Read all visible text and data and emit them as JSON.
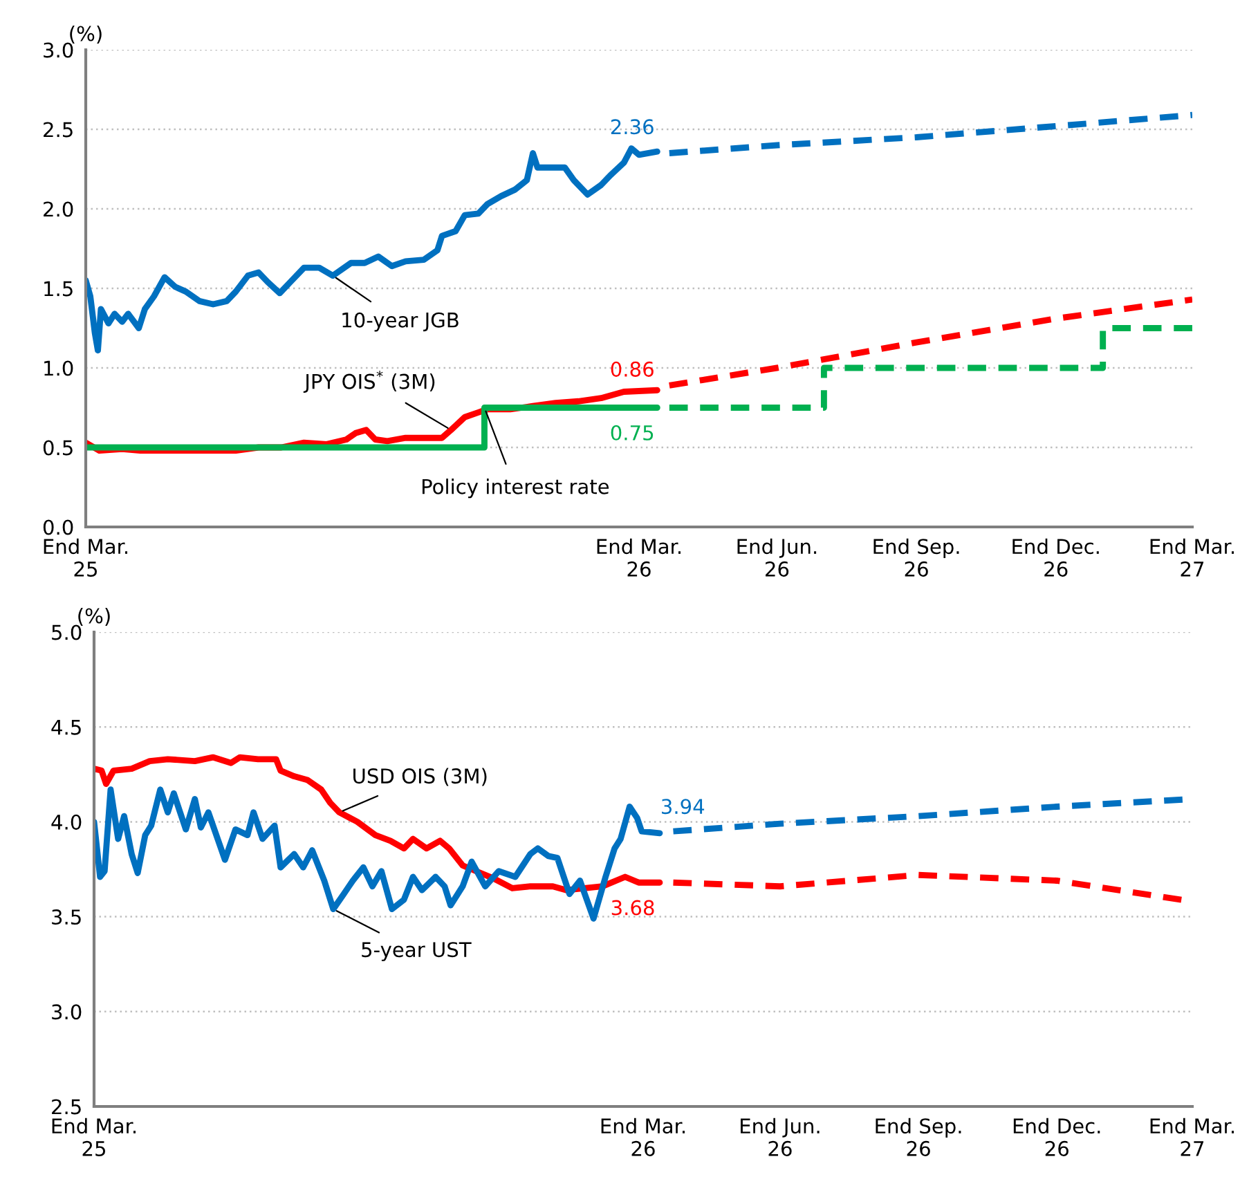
{
  "chart_data": [
    {
      "type": "line",
      "ylabel": "(%)",
      "xlim": [
        "2025-03-31",
        "2027-03-31"
      ],
      "ylim": [
        0,
        3
      ],
      "yticks": [
        {
          "value": 0,
          "label": "0.0"
        },
        0.5,
        {
          "value": 1,
          "label": "1.0"
        },
        1.5,
        {
          "value": 2,
          "label": "2.0"
        },
        2.5,
        {
          "value": 3,
          "label": "3.0"
        }
      ],
      "xticks": [
        {
          "value": "2025-03-31",
          "label": "End Mar.\n25"
        },
        {
          "value": "2026-03-31",
          "label": "End Mar.\n26"
        },
        {
          "value": "2026-06-30",
          "label": "End Jun.\n26"
        },
        {
          "value": "2026-09-30",
          "label": "End Sep.\n26"
        },
        {
          "value": "2026-12-31",
          "label": "End Dec.\n26"
        },
        {
          "value": "2027-03-31",
          "label": "End Mar.\n27"
        }
      ],
      "grid": "y",
      "line_style": "solid",
      "series": [
        {
          "name": "10-year JGB",
          "color": "#0070c0",
          "x": [
            "2025-03-31",
            "2025-04-03",
            "2025-04-06",
            "2025-04-08",
            "2025-04-10",
            "2025-04-15",
            "2025-04-19",
            "2025-04-24",
            "2025-04-28",
            "2025-05-05",
            "2025-05-09",
            "2025-05-15",
            "2025-05-22",
            "2025-05-29",
            "2025-06-05",
            "2025-06-14",
            "2025-06-23",
            "2025-07-02",
            "2025-07-08",
            "2025-07-16",
            "2025-07-23",
            "2025-07-29",
            "2025-08-06",
            "2025-08-13",
            "2025-08-22",
            "2025-09-01",
            "2025-09-10",
            "2025-09-22",
            "2025-10-01",
            "2025-10-10",
            "2025-10-19",
            "2025-10-28",
            "2025-11-09",
            "2025-11-18",
            "2025-11-21",
            "2025-11-30",
            "2025-12-06",
            "2025-12-15",
            "2025-12-21",
            "2025-12-30",
            "2026-01-08",
            "2026-01-16",
            "2026-01-20",
            "2026-01-23",
            "2026-02-01",
            "2026-02-10",
            "2026-02-16",
            "2026-02-25",
            "2026-03-06",
            "2026-03-12",
            "2026-03-21",
            "2026-03-26",
            "2026-03-31",
            "2026-04-12"
          ],
          "values": [
            1.55,
            1.45,
            1.22,
            1.11,
            1.37,
            1.28,
            1.34,
            1.29,
            1.34,
            1.25,
            1.37,
            1.45,
            1.57,
            1.51,
            1.48,
            1.42,
            1.4,
            1.42,
            1.48,
            1.58,
            1.6,
            1.54,
            1.47,
            1.54,
            1.63,
            1.63,
            1.58,
            1.66,
            1.66,
            1.7,
            1.64,
            1.67,
            1.68,
            1.74,
            1.83,
            1.86,
            1.96,
            1.97,
            2.03,
            2.08,
            2.12,
            2.18,
            2.35,
            2.26,
            2.26,
            2.26,
            2.18,
            2.09,
            2.15,
            2.21,
            2.29,
            2.38,
            2.34,
            2.36
          ],
          "value_labels": [
            null,
            null,
            null,
            null,
            null,
            null,
            null,
            null,
            null,
            null,
            null,
            null,
            null,
            null,
            null,
            null,
            null,
            null,
            null,
            null,
            null,
            null,
            null,
            null,
            null,
            null,
            null,
            null,
            null,
            null,
            null,
            null,
            null,
            null,
            null,
            null,
            null,
            null,
            null,
            null,
            null,
            null,
            null,
            null,
            null,
            null,
            null,
            null,
            null,
            null,
            null,
            null,
            null,
            "2.36"
          ]
        },
        {
          "color": "#0070c0",
          "line_style": "dashed",
          "x": [
            "2026-04-20",
            "2026-06-30",
            "2026-09-30",
            "2026-12-31",
            "2027-03-31"
          ],
          "values": [
            2.35,
            2.4,
            2.45,
            2.52,
            2.59
          ]
        },
        {
          "name": "JPY OIS$^{*}$ (3M)",
          "color": "#ff0000",
          "x": [
            "2025-03-31",
            "2025-04-09",
            "2025-04-24",
            "2025-05-06",
            "2025-05-24",
            "2025-06-08",
            "2025-06-23",
            "2025-07-08",
            "2025-07-23",
            "2025-08-07",
            "2025-08-22",
            "2025-09-06",
            "2025-09-19",
            "2025-09-25",
            "2025-10-02",
            "2025-10-08",
            "2025-10-16",
            "2025-10-28",
            "2025-11-09",
            "2025-11-21",
            "2025-11-27",
            "2025-12-06",
            "2025-12-15",
            "2025-12-21",
            "2026-01-05",
            "2026-01-20",
            "2026-02-04",
            "2026-02-19",
            "2026-03-06",
            "2026-03-21",
            "2026-04-12"
          ],
          "values": [
            0.53,
            0.48,
            0.49,
            0.48,
            0.48,
            0.48,
            0.48,
            0.48,
            0.5,
            0.5,
            0.53,
            0.52,
            0.55,
            0.59,
            0.61,
            0.55,
            0.54,
            0.56,
            0.56,
            0.56,
            0.61,
            0.69,
            0.72,
            0.74,
            0.74,
            0.76,
            0.78,
            0.79,
            0.81,
            0.85,
            0.86
          ],
          "value_labels": [
            null,
            null,
            null,
            null,
            null,
            null,
            null,
            null,
            null,
            null,
            null,
            null,
            null,
            null,
            null,
            null,
            null,
            null,
            null,
            null,
            null,
            null,
            null,
            null,
            null,
            null,
            null,
            null,
            null,
            null,
            "0.86"
          ]
        },
        {
          "color": "#ff0000",
          "line_style": "dashed",
          "x": [
            "2026-04-20",
            "2026-06-30",
            "2026-09-30",
            "2026-12-31",
            "2027-03-31"
          ],
          "values": [
            0.89,
            1.0,
            1.16,
            1.31,
            1.43
          ]
        },
        {
          "name": "Policy interest rate",
          "type": "step",
          "color": "#00b050",
          "x": [
            "2025-03-31",
            "2025-12-19",
            "2026-04-12"
          ],
          "values": [
            0.5,
            0.75,
            0.75
          ],
          "value_labels": [
            null,
            null,
            "0.75"
          ]
        },
        {
          "type": "step",
          "color": "#00b050",
          "line_style": "dashed",
          "x": [
            "2026-04-20",
            "2026-07-31",
            "2027-01-31",
            "2027-03-31"
          ],
          "values": [
            0.75,
            1.0,
            1.25,
            1.25
          ]
        }
      ]
    },
    {
      "type": "line",
      "ylabel": "(%)",
      "xlim": [
        "2025-03-31",
        "2027-03-31"
      ],
      "ylim": [
        2.5,
        5
      ],
      "yticks": [
        2.5,
        {
          "value": 3,
          "label": "3.0"
        },
        3.5,
        {
          "value": 4,
          "label": "4.0"
        },
        4.5,
        {
          "value": 5,
          "label": "5.0"
        }
      ],
      "xticks": [
        {
          "value": "2025-03-31",
          "label": "End Mar.\n25"
        },
        {
          "value": "2026-03-31",
          "label": "End Mar.\n26"
        },
        {
          "value": "2026-06-30",
          "label": "End Jun.\n26"
        },
        {
          "value": "2026-09-30",
          "label": "End Sep.\n26"
        },
        {
          "value": "2026-12-31",
          "label": "End Dec.\n26"
        },
        {
          "value": "2027-03-31",
          "label": "End Mar.\n27"
        }
      ],
      "grid": "y",
      "line_style": "solid",
      "series": [
        {
          "name": "USD OIS (3M)",
          "color": "#ff0000",
          "x": [
            "2025-03-31",
            "2025-04-05",
            "2025-04-08",
            "2025-04-13",
            "2025-04-25",
            "2025-05-07",
            "2025-05-19",
            "2025-06-06",
            "2025-06-18",
            "2025-06-30",
            "2025-07-06",
            "2025-07-18",
            "2025-07-30",
            "2025-08-02",
            "2025-08-11",
            "2025-08-20",
            "2025-08-29",
            "2025-09-04",
            "2025-09-10",
            "2025-09-22",
            "2025-10-04",
            "2025-10-14",
            "2025-10-23",
            "2025-10-29",
            "2025-11-07",
            "2025-11-16",
            "2025-11-22",
            "2025-12-01",
            "2025-12-10",
            "2025-12-22",
            "2026-01-03",
            "2026-01-15",
            "2026-01-30",
            "2026-02-08",
            "2026-02-20",
            "2026-03-04",
            "2026-03-19",
            "2026-03-28",
            "2026-04-11"
          ],
          "values": [
            4.28,
            4.27,
            4.2,
            4.27,
            4.28,
            4.32,
            4.33,
            4.32,
            4.34,
            4.31,
            4.34,
            4.33,
            4.33,
            4.27,
            4.24,
            4.22,
            4.17,
            4.1,
            4.05,
            4.0,
            3.93,
            3.9,
            3.86,
            3.91,
            3.86,
            3.9,
            3.86,
            3.77,
            3.74,
            3.7,
            3.65,
            3.66,
            3.66,
            3.64,
            3.65,
            3.66,
            3.71,
            3.68,
            3.68
          ],
          "value_labels": [
            null,
            null,
            null,
            null,
            null,
            null,
            null,
            null,
            null,
            null,
            null,
            null,
            null,
            null,
            null,
            null,
            null,
            null,
            null,
            null,
            null,
            null,
            null,
            null,
            null,
            null,
            null,
            null,
            null,
            null,
            null,
            null,
            null,
            null,
            null,
            null,
            null,
            null,
            "3.68"
          ]
        },
        {
          "color": "#ff0000",
          "line_style": "dashed",
          "x": [
            "2026-04-20",
            "2026-06-30",
            "2026-09-30",
            "2026-12-31",
            "2027-03-31"
          ],
          "values": [
            3.68,
            3.66,
            3.72,
            3.69,
            3.58
          ]
        },
        {
          "name": "5-year UST",
          "color": "#0070c0",
          "x": [
            "2025-03-31",
            "2025-04-04",
            "2025-04-07",
            "2025-04-11",
            "2025-04-16",
            "2025-04-20",
            "2025-04-25",
            "2025-04-29",
            "2025-05-04",
            "2025-05-08",
            "2025-05-14",
            "2025-05-19",
            "2025-05-23",
            "2025-05-31",
            "2025-06-06",
            "2025-06-10",
            "2025-06-15",
            "2025-06-26",
            "2025-07-03",
            "2025-07-11",
            "2025-07-15",
            "2025-07-21",
            "2025-07-29",
            "2025-08-02",
            "2025-08-11",
            "2025-08-17",
            "2025-08-23",
            "2025-08-31",
            "2025-09-06",
            "2025-09-13",
            "2025-09-19",
            "2025-09-26",
            "2025-10-02",
            "2025-10-08",
            "2025-10-15",
            "2025-10-23",
            "2025-10-29",
            "2025-11-04",
            "2025-11-13",
            "2025-11-19",
            "2025-11-23",
            "2025-12-01",
            "2025-12-07",
            "2025-12-16",
            "2025-12-25",
            "2026-01-05",
            "2026-01-15",
            "2026-01-20",
            "2026-01-27",
            "2026-02-02",
            "2026-02-10",
            "2026-02-17",
            "2026-02-26",
            "2026-03-06",
            "2026-03-12",
            "2026-03-16",
            "2026-03-22",
            "2026-03-27",
            "2026-03-30",
            "2026-04-11"
          ],
          "values": [
            4.0,
            3.71,
            3.74,
            4.17,
            3.91,
            4.03,
            3.83,
            3.73,
            3.93,
            3.98,
            4.17,
            4.05,
            4.15,
            3.96,
            4.12,
            3.97,
            4.05,
            3.8,
            3.96,
            3.93,
            4.05,
            3.91,
            3.98,
            3.76,
            3.83,
            3.76,
            3.85,
            3.69,
            3.54,
            3.62,
            3.69,
            3.76,
            3.66,
            3.74,
            3.54,
            3.59,
            3.71,
            3.64,
            3.71,
            3.66,
            3.56,
            3.66,
            3.79,
            3.66,
            3.74,
            3.71,
            3.83,
            3.86,
            3.82,
            3.81,
            3.62,
            3.69,
            3.49,
            3.71,
            3.86,
            3.91,
            4.08,
            4.02,
            3.95,
            3.94
          ],
          "value_labels": [
            null,
            null,
            null,
            null,
            null,
            null,
            null,
            null,
            null,
            null,
            null,
            null,
            null,
            null,
            null,
            null,
            null,
            null,
            null,
            null,
            null,
            null,
            null,
            null,
            null,
            null,
            null,
            null,
            null,
            null,
            null,
            null,
            null,
            null,
            null,
            null,
            null,
            null,
            null,
            null,
            null,
            null,
            null,
            null,
            null,
            null,
            null,
            null,
            null,
            null,
            null,
            null,
            null,
            null,
            null,
            null,
            null,
            null,
            null,
            "3.94"
          ]
        },
        {
          "color": "#0070c0",
          "line_style": "dashed",
          "x": [
            "2026-04-20",
            "2026-06-30",
            "2026-09-30",
            "2026-12-31",
            "2027-03-31"
          ],
          "values": [
            3.95,
            3.99,
            4.03,
            4.08,
            4.12
          ]
        }
      ]
    }
  ]
}
